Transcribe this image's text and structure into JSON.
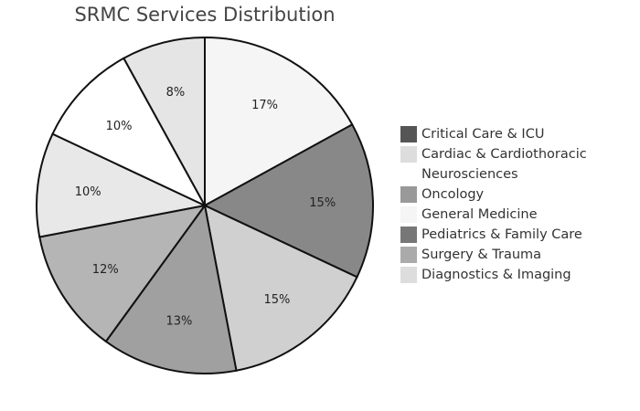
{
  "chart_data": {
    "type": "pie",
    "title": "SRMC Services Distribution",
    "categories": [
      "Critical Care & ICU",
      "Cardiac & Cardiothoracic",
      "Neurosciences",
      "Oncology",
      "General Medicine",
      "Pediatrics & Family Care",
      "Surgery & Trauma",
      "Diagnostics & Imaging"
    ],
    "values": [
      17,
      15,
      15,
      13,
      12,
      10,
      10,
      8
    ],
    "labels": [
      "17%",
      "15%",
      "15%",
      "13%",
      "12%",
      "10%",
      "10%",
      "8%"
    ],
    "slice_colors": [
      "#f5f5f5",
      "#888888",
      "#d0d0d0",
      "#a0a0a0",
      "#b5b5b5",
      "#e8e8e8",
      "#ffffff",
      "#e5e5e5"
    ],
    "legend_colors": [
      "#555555",
      "#dddddd",
      "#ffffff",
      "#999999",
      "#f5f5f5",
      "#777777",
      "#aaaaaa",
      "#dddddd"
    ],
    "legend_position": "right",
    "direction": "clockwise"
  }
}
